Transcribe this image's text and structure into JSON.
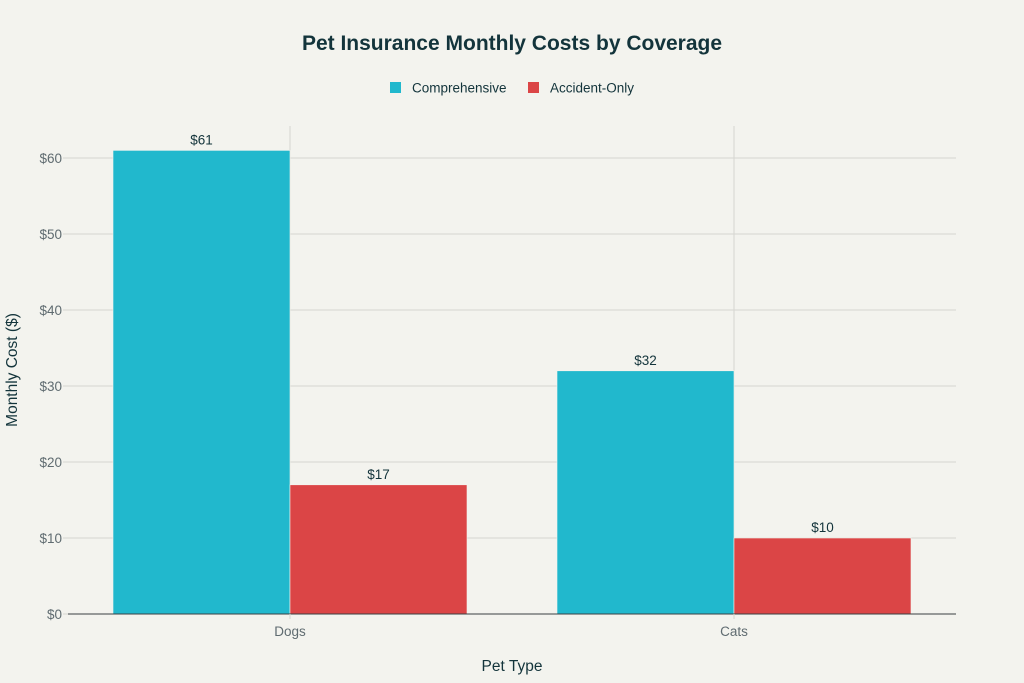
{
  "chart_data": {
    "type": "bar",
    "title": "Pet Insurance Monthly Costs by Coverage",
    "xlabel": "Pet Type",
    "ylabel": "Monthly Cost ($)",
    "categories": [
      "Dogs",
      "Cats"
    ],
    "series": [
      {
        "name": "Comprehensive",
        "color": "#21b8cd",
        "values": [
          61,
          32
        ],
        "labels": [
          "$61",
          "$32"
        ]
      },
      {
        "name": "Accident-Only",
        "color": "#db4546",
        "values": [
          17,
          10
        ],
        "labels": [
          "$17",
          "$10"
        ]
      }
    ],
    "ylim": [
      0,
      64
    ],
    "yticks": [
      0,
      10,
      20,
      30,
      40,
      50,
      60
    ],
    "ytick_labels": [
      "$0",
      "$10",
      "$20",
      "$30",
      "$40",
      "$50",
      "$60"
    ],
    "grid": true,
    "legend_position": "top-center"
  }
}
